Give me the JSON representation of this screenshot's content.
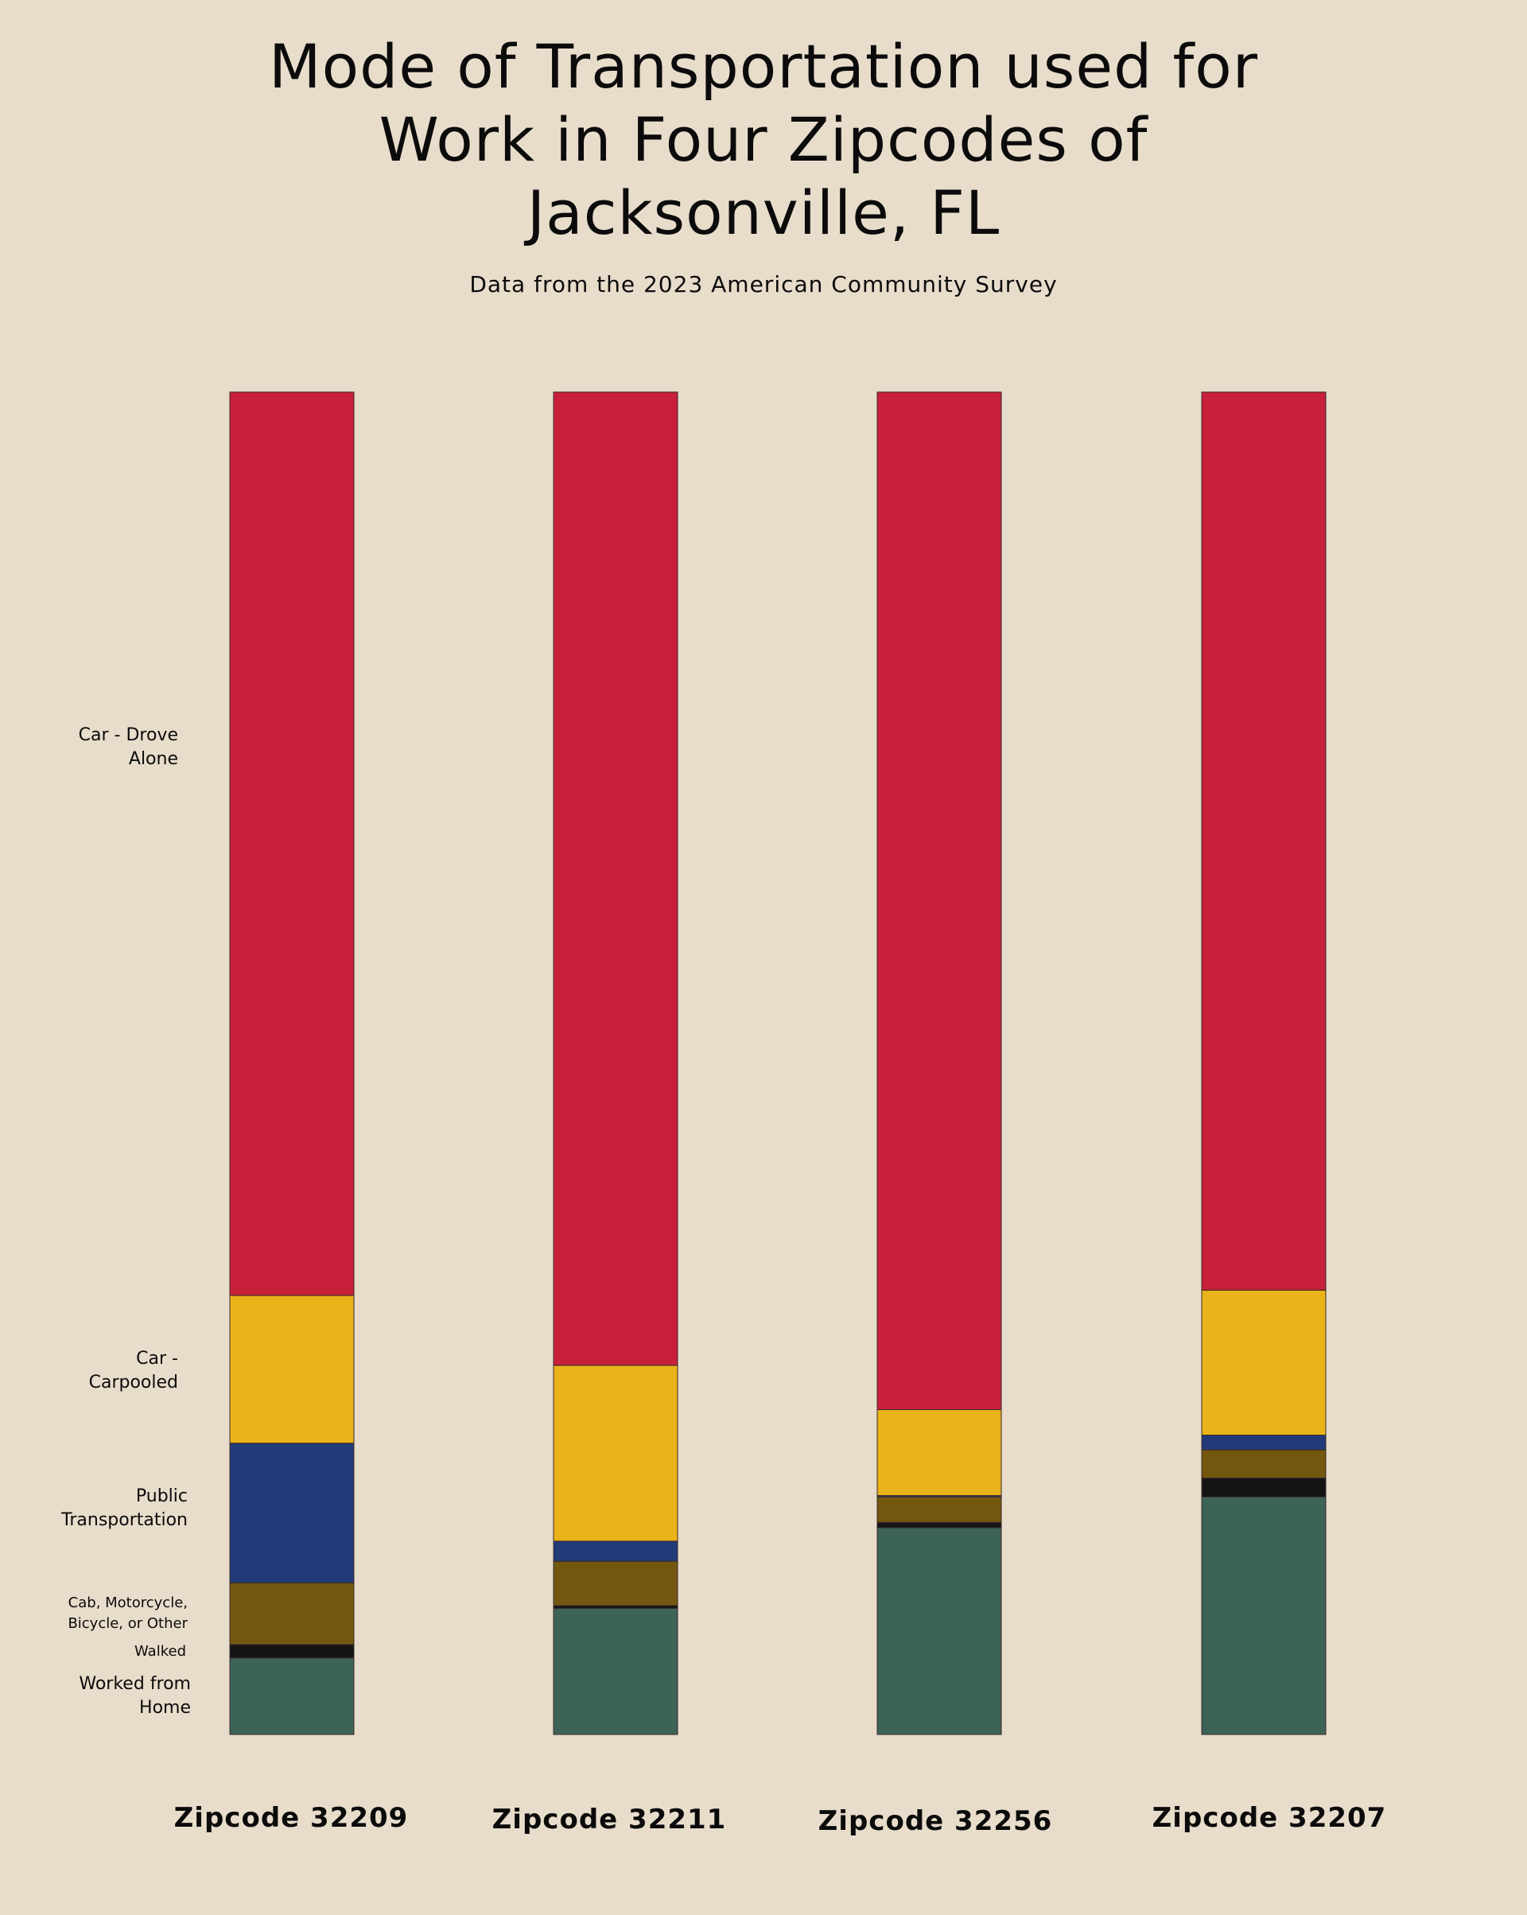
{
  "chart_data": {
    "type": "bar",
    "stacked": true,
    "title_lines": [
      "Mode of Transportation used for",
      "Work in Four Zipcodes of",
      "Jacksonville, FL"
    ],
    "subtitle": "Data from the 2023 American Community Survey",
    "categories": [
      "Zipcode 32209",
      "Zipcode 32211",
      "Zipcode 32256",
      "Zipcode 32207"
    ],
    "ylim": [
      0,
      100
    ],
    "grid": false,
    "legend": "none",
    "series": [
      {
        "name": "Worked from Home",
        "color": "#3d6356",
        "values": [
          5.7,
          9.4,
          15.4,
          17.7
        ]
      },
      {
        "name": "Walked",
        "color": "#141414",
        "values": [
          1.0,
          0.2,
          0.4,
          1.4
        ]
      },
      {
        "name": "Cab, Motorcycle, Bicycle, or Other",
        "color": "#73570f",
        "values": [
          4.6,
          3.3,
          1.9,
          2.1
        ]
      },
      {
        "name": "Public Transportation",
        "color": "#223a78",
        "values": [
          10.4,
          1.5,
          0.1,
          1.1
        ]
      },
      {
        "name": "Car - Carpooled",
        "color": "#eab31a",
        "values": [
          11.0,
          13.1,
          6.4,
          10.8
        ]
      },
      {
        "name": "Car - Drove Alone",
        "color": "#c8203a",
        "values": [
          67.3,
          72.5,
          75.8,
          66.9
        ]
      }
    ],
    "segment_labels": {
      "drove_alone": "Car - Drove\nAlone",
      "carpooled": "Car -\nCarpooled",
      "public": "Public\nTransportation",
      "other": "Cab, Motorcycle,\nBicycle, or Other",
      "walked": "Walked",
      "home": "Worked from\nHome"
    }
  }
}
